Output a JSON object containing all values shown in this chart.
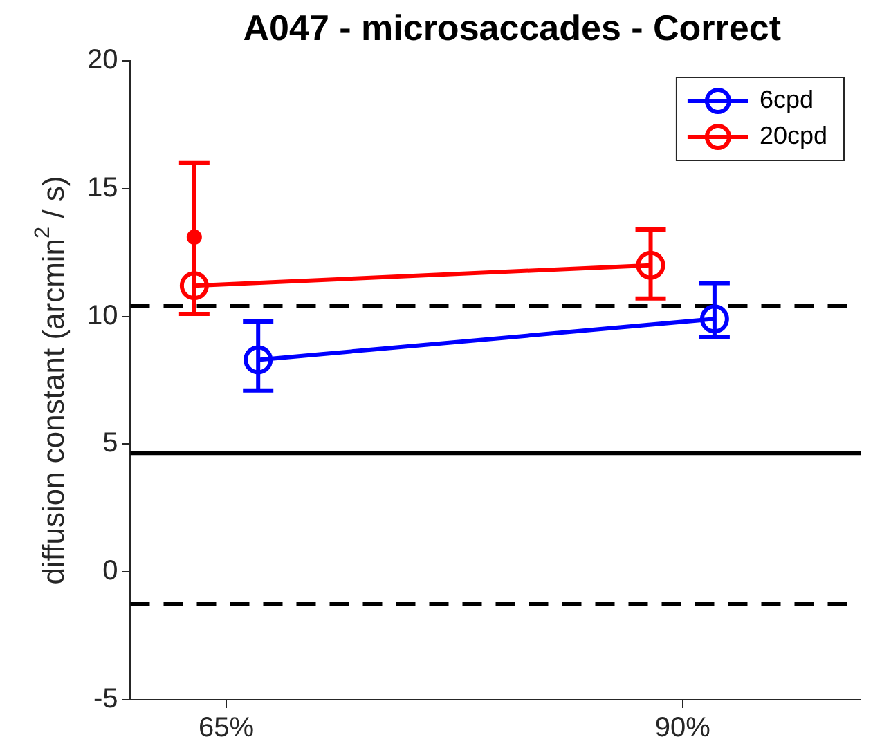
{
  "chart_data": {
    "type": "line",
    "title": "A047 - microsaccades - Correct",
    "ylabel": "diffusion constant (arcmin$^{2}$ / s)",
    "xlim": [
      59.75,
      99.75
    ],
    "xticks": [
      {
        "value": 65,
        "label": "65%"
      },
      {
        "value": 90,
        "label": "90%"
      }
    ],
    "ylim": [
      -5,
      20
    ],
    "yticks": [
      -5,
      0,
      5,
      10,
      15,
      20
    ],
    "series": [
      {
        "name": "6cpd",
        "color": "#0000ff",
        "x": [
          66.75,
          91.75
        ],
        "values": [
          8.3,
          9.9
        ],
        "errors": [
          [
            7.1,
            9.8
          ],
          [
            9.2,
            11.3
          ]
        ]
      },
      {
        "name": "20cpd",
        "color": "#ff0000",
        "x": [
          63.25,
          88.25
        ],
        "values": [
          11.2,
          12.0
        ],
        "errors": [
          [
            10.1,
            16.0
          ],
          [
            10.7,
            13.4
          ]
        ]
      },
      {
        "type": "scatter",
        "color": "#ff0000",
        "x": [
          63.25
        ],
        "values": [
          13.1
        ]
      }
    ],
    "ref_lines": [
      {
        "axis": "y",
        "value": 10.4,
        "color": "#000000",
        "line_style": "dashed"
      },
      {
        "axis": "y",
        "value": 4.65,
        "color": "#000000",
        "line_style": "solid"
      },
      {
        "axis": "y",
        "value": -1.25,
        "color": "#000000",
        "line_style": "dashed"
      }
    ],
    "marker": "circle",
    "line_style": "solid",
    "grid": false,
    "legend": "top right"
  }
}
